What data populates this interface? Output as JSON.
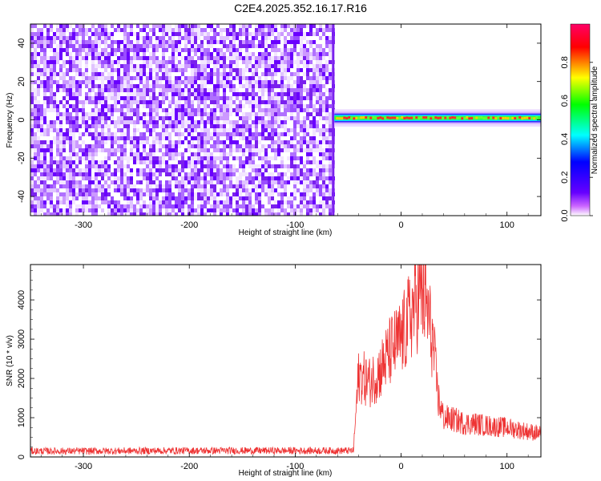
{
  "title": "C2E4.2025.352.16.17.R16",
  "chart_data": [
    {
      "type": "heatmap",
      "title": "C2E4.2025.352.16.17.R16",
      "xlabel": "Height of straight line (km)",
      "ylabel": "Frequency (Hz)",
      "xlim": [
        -350,
        132
      ],
      "ylim": [
        -50,
        50
      ],
      "xticks": [
        -300,
        -200,
        -100,
        0,
        100
      ],
      "yticks": [
        -40,
        -20,
        0,
        20,
        40
      ],
      "noise_region_x": [
        -350,
        -63
      ],
      "signal_region_x": [
        -63,
        132
      ],
      "signal_center_frequency_hz": 1,
      "colorbar": {
        "label": "Normalized spectral amplitude",
        "range": [
          0,
          1
        ],
        "ticks": [
          "0.0",
          "0.2",
          "0.4",
          "0.6",
          "0.8"
        ],
        "colors": [
          "#ffffff",
          "#cc66ff",
          "#6600ff",
          "#0000ff",
          "#00ffff",
          "#00ff00",
          "#ffff00",
          "#ff0000",
          "#ff0066"
        ]
      }
    },
    {
      "type": "line",
      "xlabel": "Height of straight line (km)",
      "ylabel": "SNR (10 * v/v)",
      "xlim": [
        -350,
        132
      ],
      "ylim": [
        0,
        4900
      ],
      "xticks": [
        -300,
        -200,
        -100,
        0,
        100
      ],
      "yticks": [
        0,
        1000,
        2000,
        3000,
        4000
      ],
      "color": "#ee3333",
      "series": [
        {
          "x": [
            -350,
            -300,
            -200,
            -100,
            -45,
            -42,
            -40,
            -35,
            -30,
            -20,
            -10,
            0,
            5,
            10,
            15,
            20,
            25,
            30,
            35,
            40,
            50,
            60,
            70,
            80,
            100,
            120,
            132
          ],
          "values": [
            150,
            150,
            160,
            160,
            160,
            1400,
            2100,
            2000,
            1900,
            2200,
            2700,
            3000,
            3300,
            3700,
            4000,
            4200,
            3700,
            2900,
            1500,
            1000,
            950,
            850,
            850,
            800,
            750,
            650,
            600
          ]
        }
      ]
    }
  ]
}
